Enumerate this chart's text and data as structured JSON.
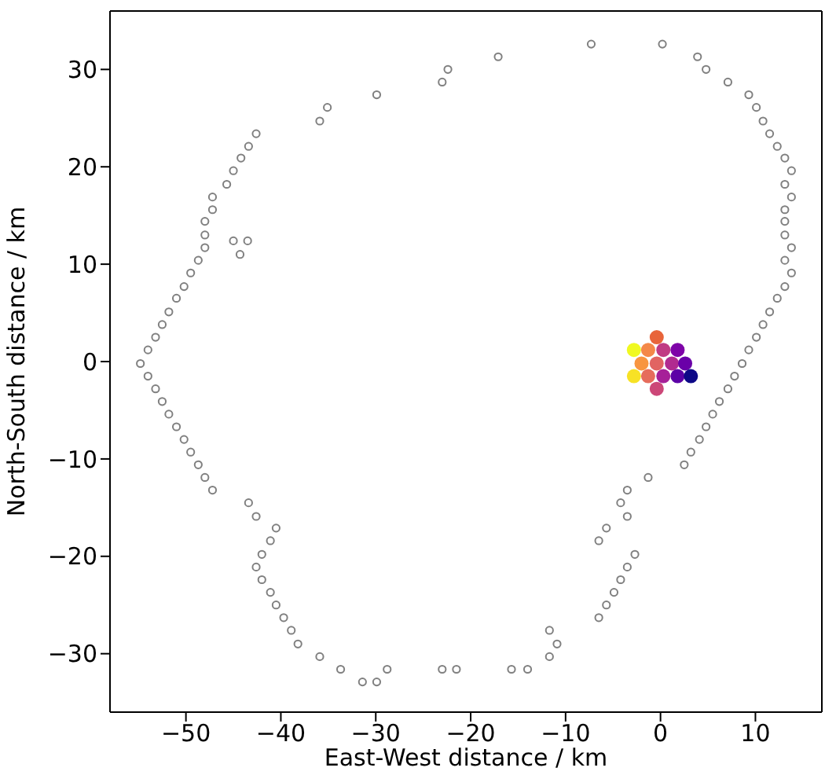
{
  "chart_data": {
    "type": "scatter",
    "xlabel": "East-West distance / km",
    "ylabel": "North-South distance / km",
    "xlim": [
      -58,
      17
    ],
    "ylim": [
      -36,
      36
    ],
    "xticks": [
      -50,
      -40,
      -30,
      -20,
      -10,
      0,
      10
    ],
    "yticks": [
      -30,
      -20,
      -10,
      0,
      10,
      20,
      30
    ],
    "legend": false,
    "marker": "circle",
    "series": [
      {
        "color": "#808080",
        "x": [
          -7.3,
          0.2,
          -17.1,
          3.9,
          -22.4,
          4.8,
          -23.0,
          7.1,
          -29.9,
          9.3,
          -35.1,
          10.1,
          -35.9,
          10.8,
          -42.6,
          11.5,
          -43.4,
          12.3,
          -44.2,
          13.1,
          -45.0,
          13.8,
          -45.7,
          13.1,
          -47.2,
          13.8,
          -47.2,
          13.1,
          -48.0,
          13.1,
          -48.0,
          13.1,
          -48.0,
          13.8,
          -48.7,
          13.1,
          -49.5,
          13.8,
          -50.2,
          13.1,
          -51.0,
          12.3,
          -51.8,
          11.5,
          -52.5,
          10.8,
          -53.2,
          10.1,
          -54.0,
          9.3,
          -54.8,
          8.6,
          -54.0,
          7.8,
          -53.2,
          7.1,
          -52.5,
          6.2,
          -51.8,
          5.5,
          -51.0,
          4.8,
          -50.2,
          4.1,
          -49.5,
          3.2,
          -48.7,
          2.5,
          -48.0,
          -1.3,
          -47.2,
          -3.5,
          -43.4,
          -4.2,
          -42.6,
          -3.5,
          -40.5,
          -5.7,
          -41.1,
          -6.5,
          -42.0,
          -2.7,
          -42.6,
          -3.5,
          -42.0,
          -4.2,
          -41.1,
          -4.9,
          -40.5,
          -5.7,
          -39.7,
          -6.5,
          -38.9,
          -11.7,
          -38.2,
          -10.9,
          -35.9,
          -11.7,
          -33.7,
          -28.8,
          -23.0,
          -21.5,
          -15.7,
          -14.0,
          -31.4,
          -29.9,
          -45.0,
          -43.5,
          -44.3
        ],
        "values": [
          32.6,
          32.6,
          31.3,
          31.3,
          30.0,
          30.0,
          28.7,
          28.7,
          27.4,
          27.4,
          26.1,
          26.1,
          24.7,
          24.7,
          23.4,
          23.4,
          22.1,
          22.1,
          20.9,
          20.9,
          19.6,
          19.6,
          18.2,
          18.2,
          16.9,
          16.9,
          15.6,
          15.6,
          14.4,
          14.4,
          13.0,
          13.0,
          11.7,
          11.7,
          10.4,
          10.4,
          9.1,
          9.1,
          7.7,
          7.7,
          6.5,
          6.5,
          5.1,
          5.1,
          3.8,
          3.8,
          2.5,
          2.5,
          1.2,
          1.2,
          -0.2,
          -0.2,
          -1.5,
          -1.5,
          -2.8,
          -2.8,
          -4.1,
          -4.1,
          -5.4,
          -5.4,
          -6.7,
          -6.7,
          -8.0,
          -8.0,
          -9.3,
          -9.3,
          -10.6,
          -10.6,
          -11.9,
          -11.9,
          -13.2,
          -13.2,
          -14.5,
          -14.5,
          -15.9,
          -15.9,
          -17.1,
          -17.1,
          -18.4,
          -18.4,
          -19.8,
          -19.8,
          -21.1,
          -21.1,
          -22.4,
          -22.4,
          -23.7,
          -23.7,
          -25.0,
          -25.0,
          -26.3,
          -26.3,
          -27.6,
          -27.6,
          -29.0,
          -29.0,
          -30.3,
          -30.3,
          -31.6,
          -31.6,
          -31.6,
          -31.6,
          -31.6,
          -31.6,
          -32.9,
          -32.9,
          12.4,
          12.4,
          11.0
        ]
      },
      {
        "x": [
          -0.4,
          -2.8,
          -1.3,
          0.3,
          1.8,
          -2.0,
          -0.4,
          1.2,
          2.6,
          -2.8,
          -1.3,
          0.3,
          1.8,
          3.2,
          -0.4
        ],
        "values": [
          2.5,
          1.2,
          1.2,
          1.2,
          1.2,
          -0.2,
          -0.2,
          -0.2,
          -0.2,
          -1.5,
          -1.5,
          -1.5,
          -1.5,
          -1.5,
          -2.8
        ],
        "colors": [
          "#e8643a",
          "#f0f921",
          "#f48849",
          "#c03a83",
          "#7e03a8",
          "#f89540",
          "#e16462",
          "#b12a90",
          "#6a00a8",
          "#f7e225",
          "#e66c5c",
          "#a62098",
          "#5c01a6",
          "#0d0887",
          "#cc4778"
        ]
      }
    ]
  }
}
